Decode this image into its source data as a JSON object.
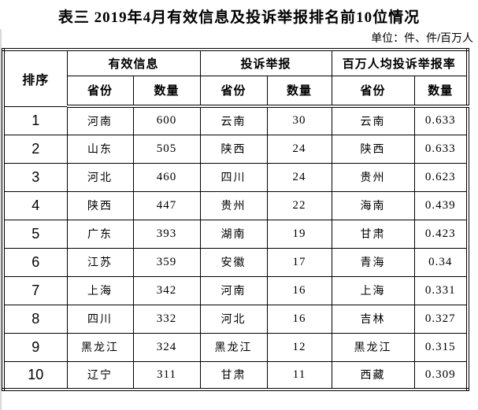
{
  "title": "表三 2019年4月有效信息及投诉举报排名前10位情况",
  "unit_label": "单位：件、件/百万人",
  "colors": {
    "text": "#000000",
    "border": "#000000",
    "background": "#ffffff"
  },
  "table": {
    "rank_header": "排序",
    "groups": [
      {
        "label": "有效信息",
        "sub": [
          "省份",
          "数量"
        ]
      },
      {
        "label": "投诉举报",
        "sub": [
          "省份",
          "数量"
        ]
      },
      {
        "label": "百万人均投诉举报率",
        "sub": [
          "省份",
          "数量"
        ]
      }
    ],
    "rows": [
      [
        "1",
        "河南",
        "600",
        "云南",
        "30",
        "云南",
        "0.633"
      ],
      [
        "2",
        "山东",
        "505",
        "陕西",
        "24",
        "陕西",
        "0.633"
      ],
      [
        "3",
        "河北",
        "460",
        "四川",
        "24",
        "贵州",
        "0.623"
      ],
      [
        "4",
        "陕西",
        "447",
        "贵州",
        "22",
        "海南",
        "0.439"
      ],
      [
        "5",
        "广东",
        "393",
        "湖南",
        "19",
        "甘肃",
        "0.423"
      ],
      [
        "6",
        "江苏",
        "359",
        "安徽",
        "17",
        "青海",
        "0.34"
      ],
      [
        "7",
        "上海",
        "342",
        "河南",
        "16",
        "上海",
        "0.331"
      ],
      [
        "8",
        "四川",
        "332",
        "河北",
        "16",
        "吉林",
        "0.327"
      ],
      [
        "9",
        "黑龙江",
        "324",
        "黑龙江",
        "12",
        "黑龙江",
        "0.315"
      ],
      [
        "10",
        "辽宁",
        "311",
        "甘肃",
        "11",
        "西藏",
        "0.309"
      ]
    ]
  }
}
